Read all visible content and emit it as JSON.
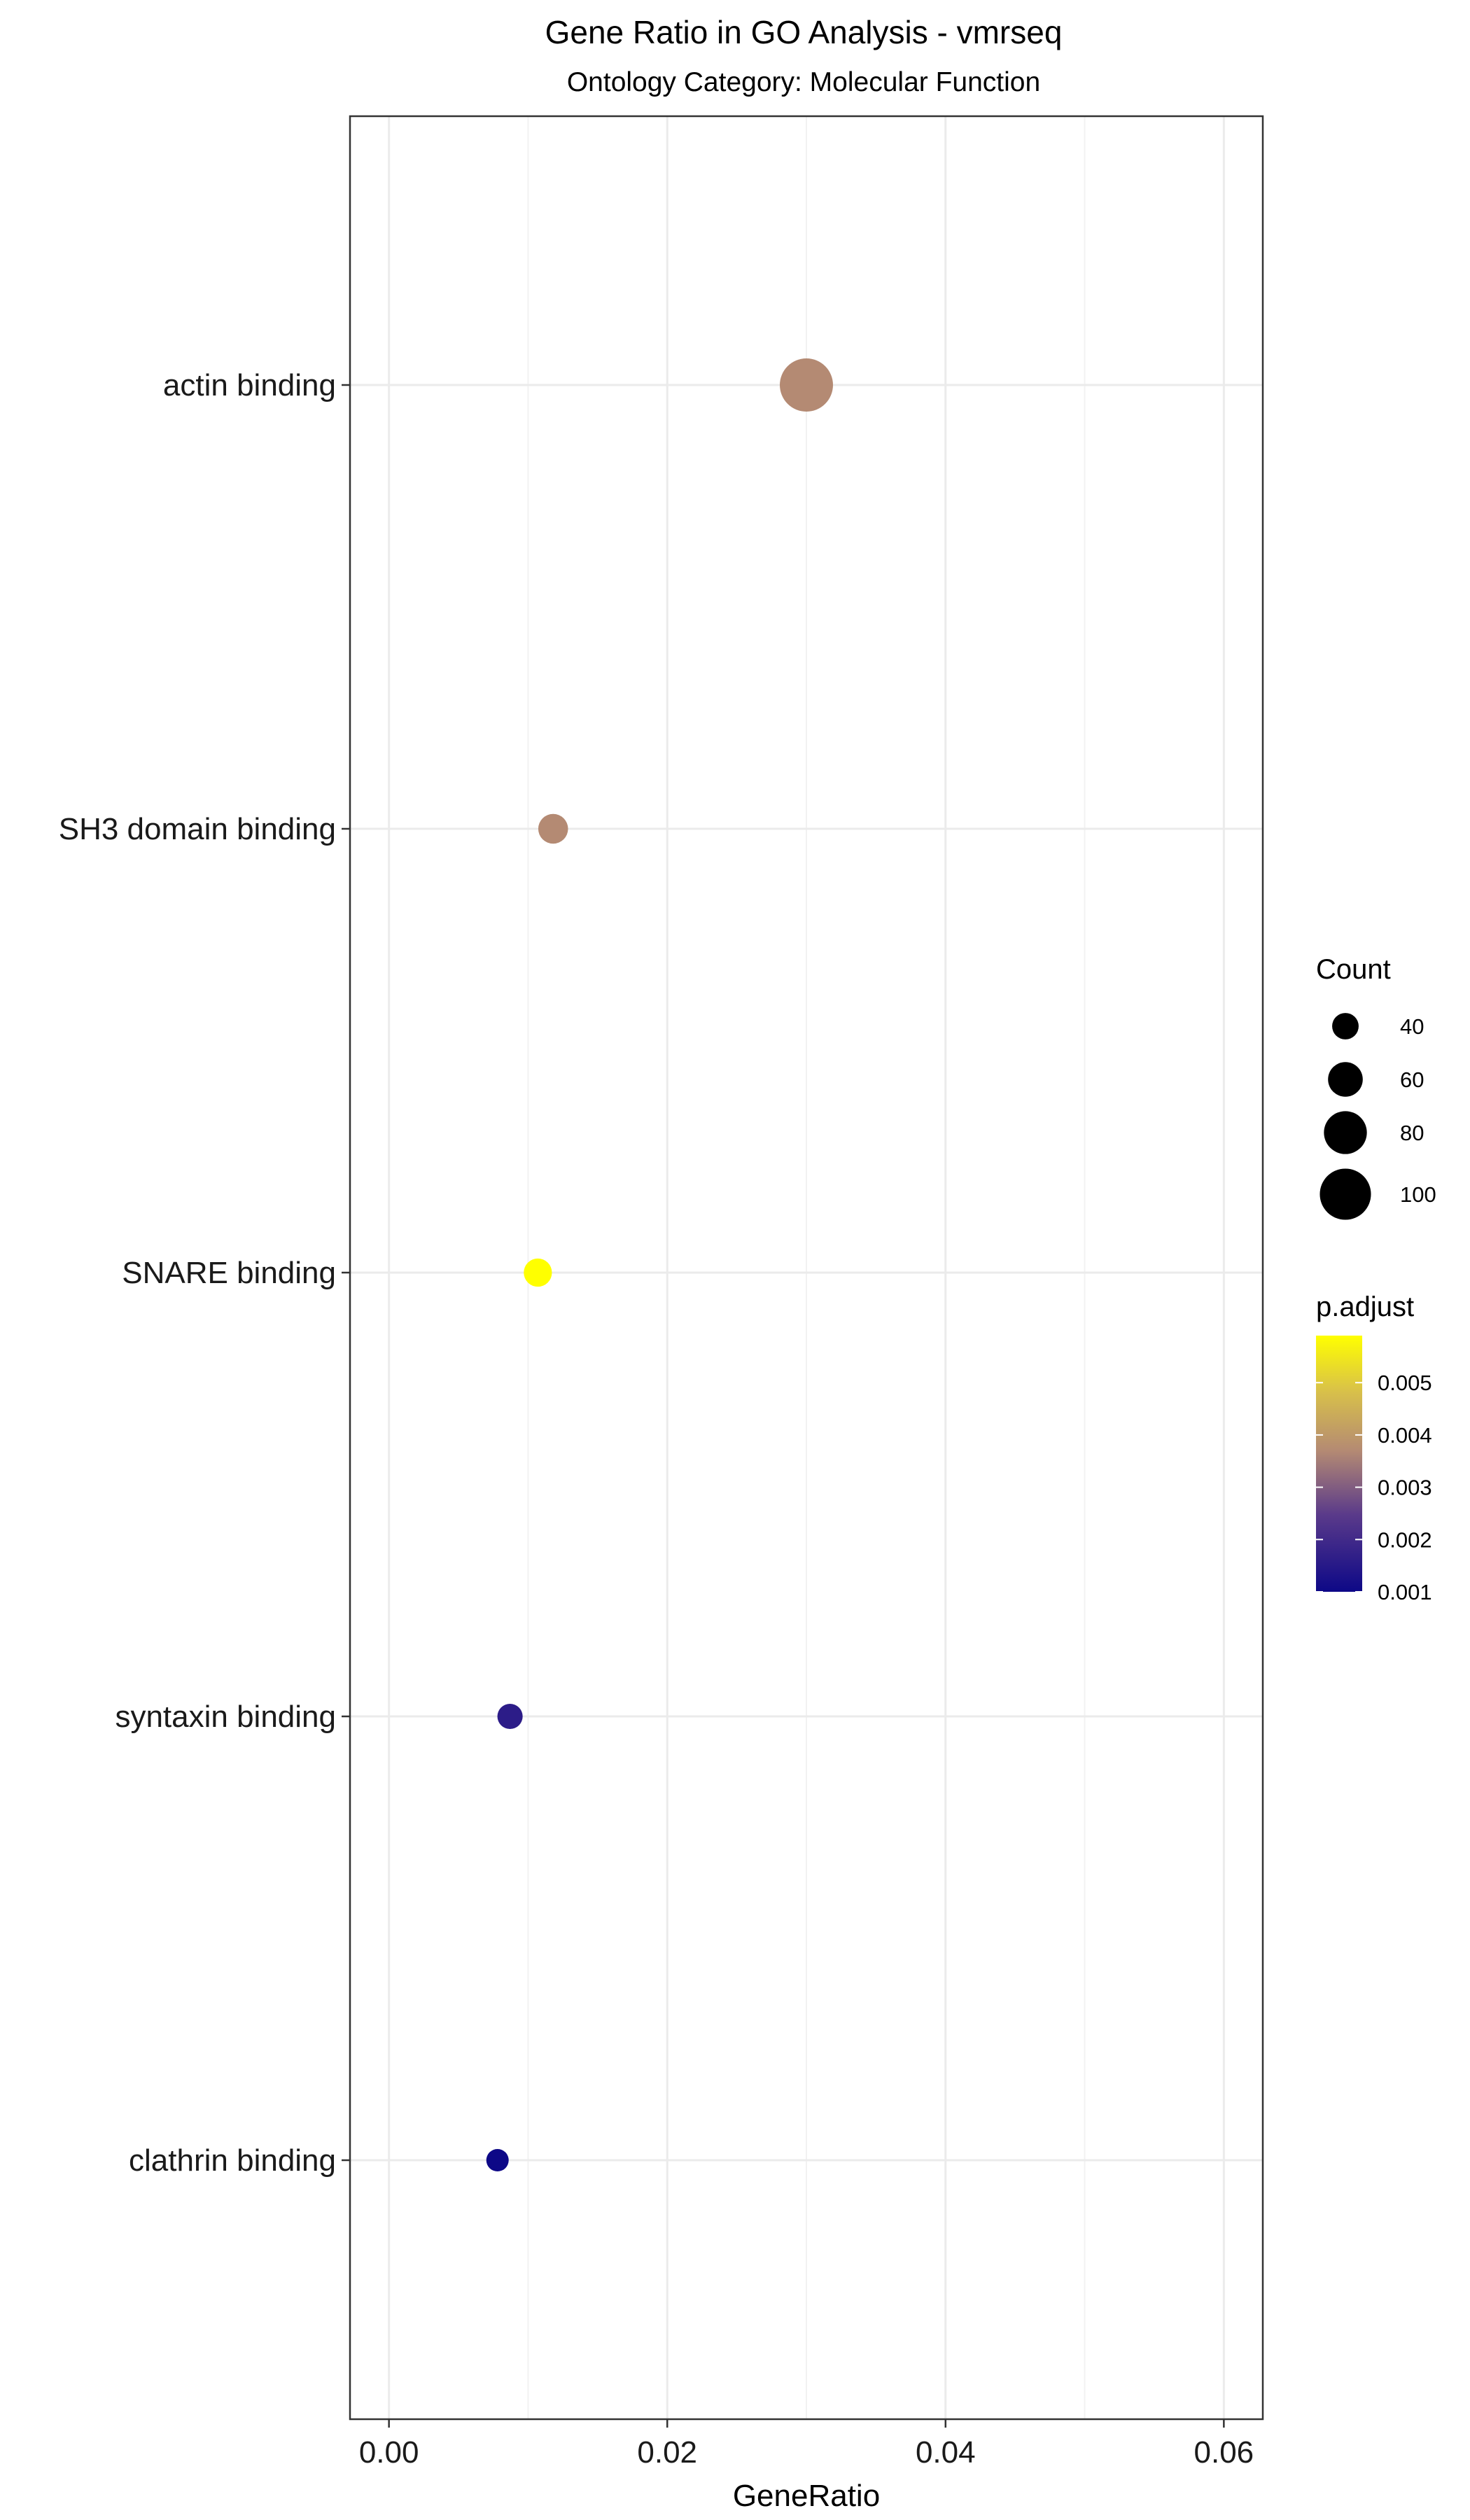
{
  "chart_data": {
    "type": "scatter",
    "title": "Gene Ratio in GO Analysis - vmrseq",
    "subtitle": "Ontology Category: Molecular Function",
    "xlabel": "GeneRatio",
    "ylabel": "",
    "xlim": [
      -0.0028,
      0.0628
    ],
    "x_ticks": [
      0.0,
      0.02,
      0.04,
      0.06
    ],
    "x_tick_labels": [
      "0.00",
      "0.02",
      "0.04",
      "0.06"
    ],
    "categories": [
      "actin binding",
      "SH3 domain binding",
      "SNARE binding",
      "syntaxin binding",
      "clathrin binding"
    ],
    "points": [
      {
        "term": "actin binding",
        "gene_ratio": 0.03,
        "count": 105,
        "p_adjust": 0.0037
      },
      {
        "term": "SH3 domain binding",
        "gene_ratio": 0.0118,
        "count": 48,
        "p_adjust": 0.0037
      },
      {
        "term": "SNARE binding",
        "gene_ratio": 0.0107,
        "count": 44,
        "p_adjust": 0.0059
      },
      {
        "term": "syntaxin binding",
        "gene_ratio": 0.0087,
        "count": 37,
        "p_adjust": 0.0016
      },
      {
        "term": "clathrin binding",
        "gene_ratio": 0.0078,
        "count": 30,
        "p_adjust": 0.001
      }
    ],
    "grid": true,
    "legend_position": "right",
    "size_legend": {
      "title": "Count",
      "values": [
        40,
        60,
        80,
        100
      ],
      "labels": [
        "40",
        "60",
        "80",
        "100"
      ]
    },
    "color_legend": {
      "title": "p.adjust",
      "min": 0.001,
      "max": 0.0059,
      "ticks": [
        0.001,
        0.002,
        0.003,
        0.004,
        0.005
      ],
      "tick_labels": [
        "0.001",
        "0.002",
        "0.003",
        "0.004",
        "0.005"
      ],
      "low_color": "#0d0887",
      "mid_color": "#b48a73",
      "high_color": "#ffff00"
    },
    "colors": {
      "grid": "#ebebeb",
      "panel_border": "#333333",
      "point_outline": "none"
    }
  }
}
